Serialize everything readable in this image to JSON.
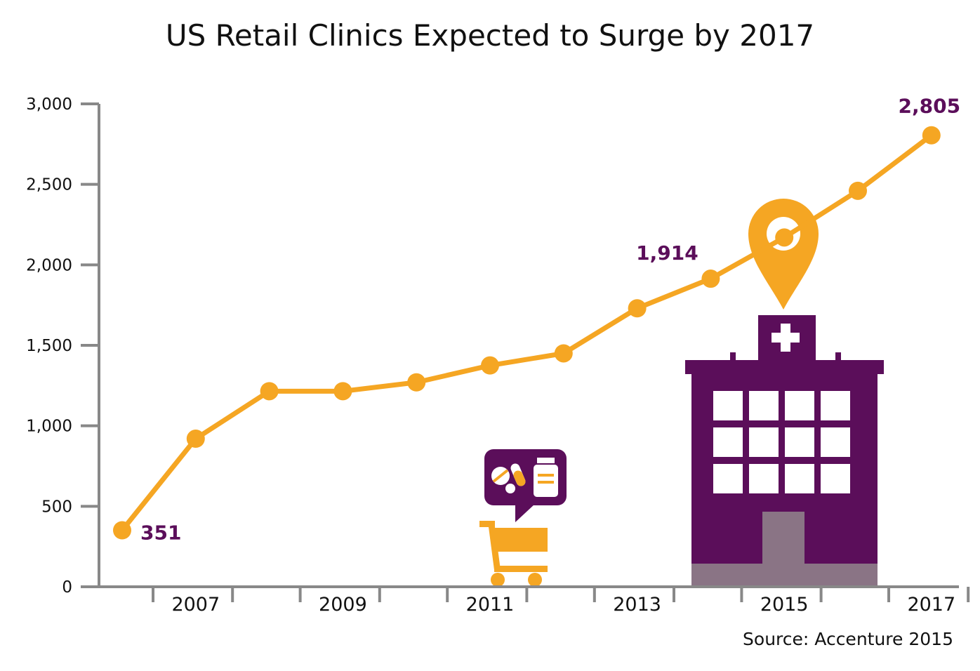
{
  "title": "US Retail Clinics Expected to Surge by 2017",
  "source": "Source: Accenture 2015",
  "colors": {
    "line": "#F5A623",
    "label": "#5B0E5A",
    "axis": "#888888",
    "building": "#5B0E5A",
    "building_base": "#8A7485"
  },
  "icons": [
    "map-pin-icon",
    "hospital-building-icon",
    "shopping-cart-icon",
    "pill-speech-bubble-icon"
  ],
  "chart_data": {
    "type": "line",
    "title": "US Retail Clinics Expected to Surge by 2017",
    "x": [
      2006,
      2007,
      2008,
      2009,
      2010,
      2011,
      2012,
      2013,
      2014,
      2015,
      2016,
      2017
    ],
    "values": [
      351,
      920,
      1215,
      1215,
      1270,
      1375,
      1450,
      1730,
      1914,
      2170,
      2460,
      2805
    ],
    "xlabels": [
      "2007",
      "2009",
      "2011",
      "2013",
      "2015",
      "2017"
    ],
    "yticks": [
      "0",
      "500",
      "1,000",
      "1,500",
      "2,000",
      "2,500",
      "3,000"
    ],
    "ylim": [
      0,
      3000
    ],
    "data_labels": [
      {
        "year": 2006,
        "text": "351"
      },
      {
        "year": 2014,
        "text": "1,914"
      },
      {
        "year": 2017,
        "text": "2,805"
      }
    ],
    "legend": "none"
  }
}
